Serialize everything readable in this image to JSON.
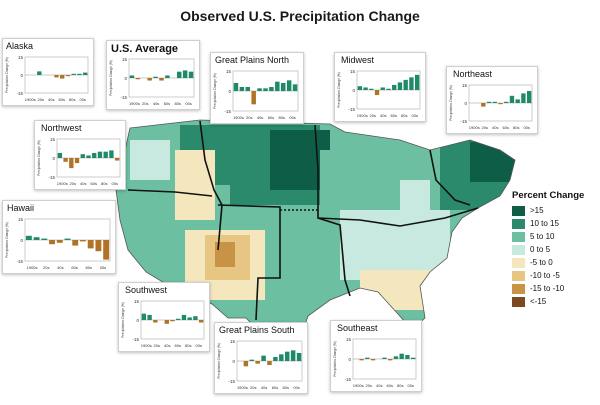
{
  "title": "Observed U.S. Precipitation Change",
  "inset_axis": {
    "ylabel": "Precipitation Change (%)",
    "yticks": [
      "15",
      "0",
      "-15"
    ],
    "xticks": [
      "1900s",
      "20s",
      "40s",
      "60s",
      "80s",
      "00s"
    ]
  },
  "legend": {
    "title": "Percent Change",
    "items": [
      {
        "label": ">15",
        "color": "#0e5e47"
      },
      {
        "label": "10 to 15",
        "color": "#2a8a6b"
      },
      {
        "label": "5 to 10",
        "color": "#6cbfa0"
      },
      {
        "label": "0 to 5",
        "color": "#c7e9df"
      },
      {
        "label": "-5 to 0",
        "color": "#f4e7bd"
      },
      {
        "label": "-10 to -5",
        "color": "#e7c683"
      },
      {
        "label": "-15 to -10",
        "color": "#c89344"
      },
      {
        "label": "<-15",
        "color": "#7c4a1e"
      }
    ]
  },
  "chart_data": [
    {
      "type": "bar",
      "title": "Alaska",
      "categories": [
        "1900s",
        "10s",
        "20s",
        "30s",
        "40s",
        "50s",
        "60s",
        "70s",
        "80s",
        "90s",
        "00s"
      ],
      "values": [
        0,
        0,
        3,
        0,
        0,
        -2,
        -3,
        -1,
        1,
        1,
        2
      ],
      "ylim": [
        -15,
        15
      ]
    },
    {
      "type": "bar",
      "title": "U.S. Average",
      "categories": [
        "1900s",
        "10s",
        "20s",
        "30s",
        "40s",
        "50s",
        "60s",
        "70s",
        "80s",
        "90s",
        "00s"
      ],
      "values": [
        2,
        -1,
        0,
        -2,
        1,
        -2,
        2,
        0,
        5,
        6,
        5
      ],
      "ylim": [
        -15,
        15
      ]
    },
    {
      "type": "bar",
      "title": "Great Plains North",
      "categories": [
        "1900s",
        "10s",
        "20s",
        "30s",
        "40s",
        "50s",
        "60s",
        "70s",
        "80s",
        "90s",
        "00s"
      ],
      "values": [
        6,
        3,
        3,
        -10,
        2,
        2,
        3,
        7,
        6,
        8,
        5
      ],
      "ylim": [
        -15,
        15
      ]
    },
    {
      "type": "bar",
      "title": "Midwest",
      "categories": [
        "1900s",
        "10s",
        "20s",
        "30s",
        "40s",
        "50s",
        "60s",
        "70s",
        "80s",
        "90s",
        "00s"
      ],
      "values": [
        3,
        2,
        1,
        -4,
        2,
        1,
        4,
        6,
        8,
        10,
        12
      ],
      "ylim": [
        -15,
        15
      ]
    },
    {
      "type": "bar",
      "title": "Northeast",
      "categories": [
        "1900s",
        "10s",
        "20s",
        "30s",
        "40s",
        "50s",
        "60s",
        "70s",
        "80s",
        "90s",
        "00s"
      ],
      "values": [
        0,
        0,
        -3,
        1,
        1,
        -1,
        1,
        6,
        3,
        8,
        10
      ],
      "ylim": [
        -15,
        15
      ]
    },
    {
      "type": "bar",
      "title": "Northwest",
      "categories": [
        "1900s",
        "10s",
        "20s",
        "30s",
        "40s",
        "50s",
        "60s",
        "70s",
        "80s",
        "90s",
        "00s"
      ],
      "values": [
        4,
        -3,
        -8,
        -4,
        3,
        2,
        4,
        5,
        5,
        6,
        -2
      ],
      "ylim": [
        -15,
        15
      ]
    },
    {
      "type": "bar",
      "title": "Hawaii",
      "categories": [
        "1900s",
        "10s",
        "20s",
        "30s",
        "40s",
        "50s",
        "60s",
        "70s",
        "80s",
        "90s",
        "00s"
      ],
      "values": [
        3,
        2,
        1,
        -3,
        -2,
        1,
        -4,
        -1,
        -6,
        -8,
        -14
      ],
      "ylim": [
        -15,
        15
      ]
    },
    {
      "type": "bar",
      "title": "Southwest",
      "categories": [
        "1900s",
        "10s",
        "20s",
        "30s",
        "40s",
        "50s",
        "60s",
        "70s",
        "80s",
        "90s",
        "00s"
      ],
      "values": [
        5,
        4,
        -2,
        0,
        -3,
        -1,
        1,
        4,
        2,
        3,
        -2
      ],
      "ylim": [
        -15,
        15
      ]
    },
    {
      "type": "bar",
      "title": "Great Plains South",
      "categories": [
        "1900s",
        "10s",
        "20s",
        "30s",
        "40s",
        "50s",
        "60s",
        "70s",
        "80s",
        "90s",
        "00s"
      ],
      "values": [
        0,
        -4,
        1,
        -2,
        4,
        -3,
        3,
        5,
        7,
        8,
        6
      ],
      "ylim": [
        -15,
        15
      ]
    },
    {
      "type": "bar",
      "title": "Southeast",
      "categories": [
        "1900s",
        "10s",
        "20s",
        "30s",
        "40s",
        "50s",
        "60s",
        "70s",
        "80s",
        "90s",
        "00s"
      ],
      "values": [
        0,
        -1,
        1,
        -1,
        0,
        1,
        -1,
        2,
        4,
        3,
        1
      ],
      "ylim": [
        -15,
        15
      ]
    }
  ]
}
